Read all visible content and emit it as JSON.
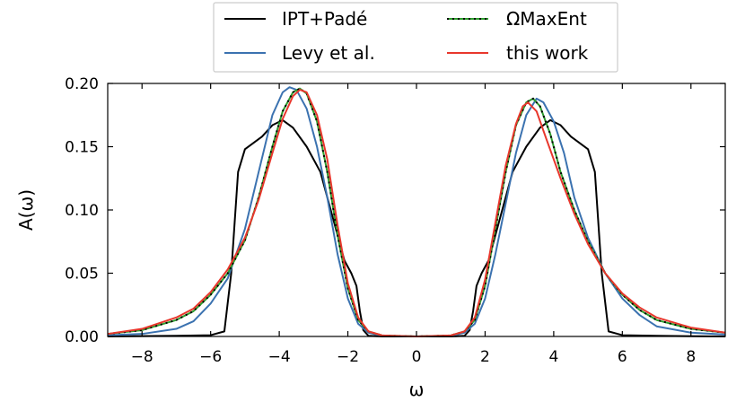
{
  "chart_data": {
    "type": "line",
    "xlabel": "ω",
    "ylabel": "A(ω)",
    "xlim": [
      -9,
      9
    ],
    "ylim": [
      0,
      0.2
    ],
    "xticks": [
      -8,
      -6,
      -4,
      -2,
      0,
      2,
      4,
      6,
      8
    ],
    "xtick_labels": [
      "−8",
      "−6",
      "−4",
      "−2",
      "0",
      "2",
      "4",
      "6",
      "8"
    ],
    "yticks": [
      0,
      0.05,
      0.1,
      0.15,
      0.2
    ],
    "ytick_labels": [
      "0.00",
      "0.05",
      "0.10",
      "0.15",
      "0.20"
    ],
    "grid": false,
    "legend_position": "top-center",
    "series": [
      {
        "name": "IPT+Padé",
        "color": "#000000",
        "style": "solid",
        "points": [
          [
            -9,
            0
          ],
          [
            -7,
            0.0005
          ],
          [
            -6,
            0.001
          ],
          [
            -5.6,
            0.004
          ],
          [
            -5.4,
            0.05
          ],
          [
            -5.2,
            0.13
          ],
          [
            -5,
            0.148
          ],
          [
            -4.5,
            0.158
          ],
          [
            -4.2,
            0.167
          ],
          [
            -3.9,
            0.171
          ],
          [
            -3.6,
            0.165
          ],
          [
            -3.2,
            0.15
          ],
          [
            -2.8,
            0.13
          ],
          [
            -2.4,
            0.09
          ],
          [
            -2.1,
            0.06
          ],
          [
            -1.9,
            0.05
          ],
          [
            -1.75,
            0.04
          ],
          [
            -1.65,
            0.02
          ],
          [
            -1.55,
            0.005
          ],
          [
            -1.4,
            0.0005
          ],
          [
            -1,
            0
          ],
          [
            0,
            0
          ],
          [
            1,
            0
          ],
          [
            1.4,
            0.0005
          ],
          [
            1.55,
            0.005
          ],
          [
            1.65,
            0.02
          ],
          [
            1.75,
            0.04
          ],
          [
            1.9,
            0.05
          ],
          [
            2.1,
            0.06
          ],
          [
            2.4,
            0.09
          ],
          [
            2.8,
            0.13
          ],
          [
            3.2,
            0.15
          ],
          [
            3.6,
            0.165
          ],
          [
            3.9,
            0.171
          ],
          [
            4.2,
            0.167
          ],
          [
            4.5,
            0.158
          ],
          [
            5,
            0.148
          ],
          [
            5.2,
            0.13
          ],
          [
            5.4,
            0.05
          ],
          [
            5.6,
            0.004
          ],
          [
            6,
            0.001
          ],
          [
            7,
            0.0005
          ],
          [
            9,
            0
          ]
        ]
      },
      {
        "name": "Levy et al.",
        "color": "#3b72b0",
        "style": "solid",
        "points": [
          [
            -9,
            0.001
          ],
          [
            -8,
            0.002
          ],
          [
            -7,
            0.006
          ],
          [
            -6.5,
            0.012
          ],
          [
            -6,
            0.026
          ],
          [
            -5.5,
            0.046
          ],
          [
            -5,
            0.085
          ],
          [
            -4.6,
            0.13
          ],
          [
            -4.2,
            0.175
          ],
          [
            -3.9,
            0.193
          ],
          [
            -3.7,
            0.197
          ],
          [
            -3.5,
            0.195
          ],
          [
            -3.2,
            0.18
          ],
          [
            -2.9,
            0.15
          ],
          [
            -2.6,
            0.11
          ],
          [
            -2.3,
            0.065
          ],
          [
            -2,
            0.03
          ],
          [
            -1.7,
            0.01
          ],
          [
            -1.4,
            0.003
          ],
          [
            -1,
            0.0005
          ],
          [
            0,
            0
          ],
          [
            1,
            0.0005
          ],
          [
            1.4,
            0.003
          ],
          [
            1.7,
            0.01
          ],
          [
            2,
            0.03
          ],
          [
            2.3,
            0.065
          ],
          [
            2.6,
            0.105
          ],
          [
            2.9,
            0.145
          ],
          [
            3.2,
            0.175
          ],
          [
            3.5,
            0.188
          ],
          [
            3.7,
            0.185
          ],
          [
            4,
            0.17
          ],
          [
            4.3,
            0.145
          ],
          [
            4.6,
            0.11
          ],
          [
            5,
            0.078
          ],
          [
            5.5,
            0.05
          ],
          [
            6,
            0.03
          ],
          [
            6.5,
            0.017
          ],
          [
            7,
            0.008
          ],
          [
            8,
            0.003
          ],
          [
            9,
            0.0015
          ]
        ]
      },
      {
        "name": "ΩMaxEnt",
        "color": "#2e9e2e",
        "style": "dash-dot",
        "points": [
          [
            -9,
            0.002
          ],
          [
            -8,
            0.005
          ],
          [
            -7,
            0.013
          ],
          [
            -6.5,
            0.02
          ],
          [
            -6,
            0.033
          ],
          [
            -5.5,
            0.05
          ],
          [
            -5,
            0.076
          ],
          [
            -4.6,
            0.11
          ],
          [
            -4.2,
            0.15
          ],
          [
            -3.9,
            0.178
          ],
          [
            -3.6,
            0.193
          ],
          [
            -3.4,
            0.196
          ],
          [
            -3.2,
            0.192
          ],
          [
            -2.9,
            0.17
          ],
          [
            -2.6,
            0.13
          ],
          [
            -2.3,
            0.08
          ],
          [
            -2,
            0.038
          ],
          [
            -1.7,
            0.013
          ],
          [
            -1.4,
            0.004
          ],
          [
            -1,
            0.0008
          ],
          [
            0,
            0
          ],
          [
            1,
            0.0008
          ],
          [
            1.4,
            0.004
          ],
          [
            1.7,
            0.013
          ],
          [
            2,
            0.04
          ],
          [
            2.3,
            0.085
          ],
          [
            2.6,
            0.13
          ],
          [
            2.9,
            0.167
          ],
          [
            3.2,
            0.185
          ],
          [
            3.4,
            0.188
          ],
          [
            3.6,
            0.182
          ],
          [
            3.9,
            0.16
          ],
          [
            4.2,
            0.13
          ],
          [
            4.6,
            0.1
          ],
          [
            5,
            0.075
          ],
          [
            5.5,
            0.05
          ],
          [
            6,
            0.033
          ],
          [
            6.5,
            0.021
          ],
          [
            7,
            0.013
          ],
          [
            8,
            0.006
          ],
          [
            9,
            0.003
          ]
        ]
      },
      {
        "name": "this work",
        "color": "#e8372c",
        "style": "solid",
        "points": [
          [
            -9,
            0.002
          ],
          [
            -8,
            0.006
          ],
          [
            -7,
            0.015
          ],
          [
            -6.5,
            0.022
          ],
          [
            -6,
            0.035
          ],
          [
            -5.5,
            0.053
          ],
          [
            -5,
            0.078
          ],
          [
            -4.6,
            0.108
          ],
          [
            -4.2,
            0.145
          ],
          [
            -3.9,
            0.172
          ],
          [
            -3.6,
            0.19
          ],
          [
            -3.4,
            0.195
          ],
          [
            -3.2,
            0.193
          ],
          [
            -2.9,
            0.175
          ],
          [
            -2.6,
            0.14
          ],
          [
            -2.3,
            0.088
          ],
          [
            -2,
            0.042
          ],
          [
            -1.7,
            0.015
          ],
          [
            -1.4,
            0.004
          ],
          [
            -1,
            0.0008
          ],
          [
            0,
            0
          ],
          [
            1,
            0.0008
          ],
          [
            1.4,
            0.004
          ],
          [
            1.7,
            0.015
          ],
          [
            2,
            0.045
          ],
          [
            2.3,
            0.09
          ],
          [
            2.6,
            0.135
          ],
          [
            2.9,
            0.168
          ],
          [
            3.1,
            0.182
          ],
          [
            3.25,
            0.185
          ],
          [
            3.5,
            0.178
          ],
          [
            3.8,
            0.155
          ],
          [
            4.2,
            0.125
          ],
          [
            4.6,
            0.097
          ],
          [
            5,
            0.073
          ],
          [
            5.5,
            0.05
          ],
          [
            6,
            0.034
          ],
          [
            6.5,
            0.023
          ],
          [
            7,
            0.015
          ],
          [
            8,
            0.007
          ],
          [
            9,
            0.003
          ]
        ]
      }
    ]
  }
}
